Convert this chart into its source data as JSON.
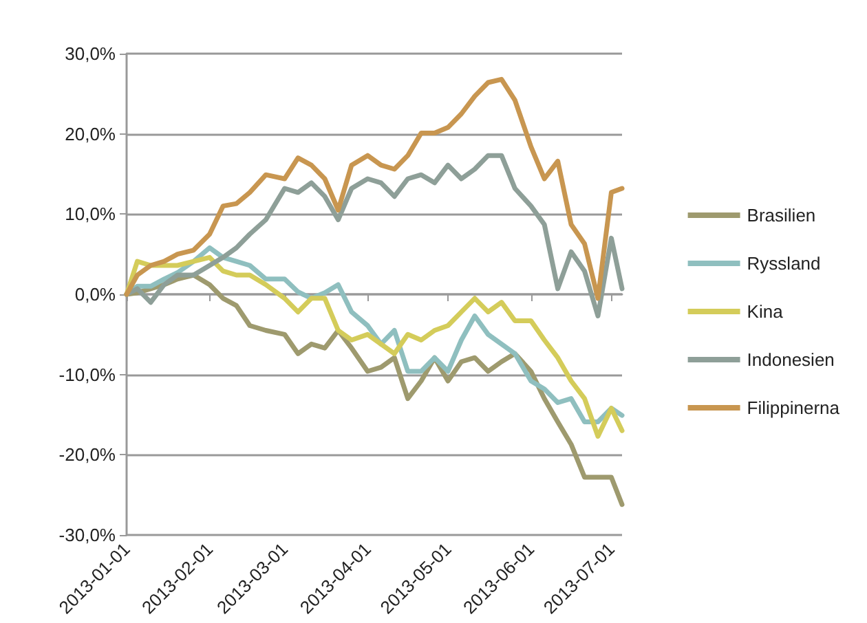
{
  "chart_data": {
    "type": "line",
    "x": [
      "2013-01-01",
      "2013-01-05",
      "2013-01-10",
      "2013-01-15",
      "2013-01-20",
      "2013-01-26",
      "2013-02-01",
      "2013-02-06",
      "2013-02-11",
      "2013-02-16",
      "2013-02-22",
      "2013-03-01",
      "2013-03-06",
      "2013-03-11",
      "2013-03-16",
      "2013-03-21",
      "2013-03-26",
      "2013-04-01",
      "2013-04-06",
      "2013-04-11",
      "2013-04-16",
      "2013-04-21",
      "2013-04-26",
      "2013-05-01",
      "2013-05-06",
      "2013-05-11",
      "2013-05-16",
      "2013-05-21",
      "2013-05-26",
      "2013-06-01",
      "2013-06-06",
      "2013-06-11",
      "2013-06-16",
      "2013-06-21",
      "2013-06-26",
      "2013-07-01",
      "2013-07-05"
    ],
    "series": [
      {
        "name": "Brasilien",
        "color": "#9e9a6e",
        "values": [
          0,
          0.2,
          0.7,
          1.2,
          1.9,
          2.4,
          1.2,
          -0.5,
          -1.4,
          -3.9,
          -4.5,
          -5.0,
          -7.4,
          -6.2,
          -6.7,
          -4.5,
          -6.7,
          -9.6,
          -9.1,
          -7.9,
          -13.0,
          -10.8,
          -7.9,
          -10.8,
          -8.4,
          -7.9,
          -9.6,
          -8.4,
          -7.4,
          -9.6,
          -13.0,
          -15.9,
          -18.7,
          -22.8,
          -22.8,
          -22.8,
          -26.2
        ]
      },
      {
        "name": "Ryssland",
        "color": "#8fbfbf",
        "values": [
          0,
          1.0,
          1.0,
          1.9,
          2.7,
          4.1,
          5.8,
          4.6,
          4.1,
          3.6,
          1.9,
          1.9,
          0.3,
          -0.5,
          0.2,
          1.2,
          -2.2,
          -3.9,
          -6.2,
          -4.5,
          -9.6,
          -9.6,
          -7.9,
          -9.6,
          -5.7,
          -2.7,
          -5.0,
          -6.2,
          -7.4,
          -10.8,
          -11.8,
          -13.5,
          -13.0,
          -15.9,
          -15.9,
          -14.2,
          -15.1
        ]
      },
      {
        "name": "Kina",
        "color": "#d4cc5a",
        "values": [
          0,
          4.1,
          3.6,
          3.6,
          3.6,
          4.1,
          4.6,
          2.9,
          2.4,
          2.4,
          1.2,
          -0.5,
          -2.2,
          -0.5,
          -0.5,
          -4.5,
          -5.7,
          -5.0,
          -6.2,
          -7.4,
          -5.0,
          -5.7,
          -4.5,
          -3.9,
          -2.2,
          -0.5,
          -2.2,
          -1.0,
          -3.3,
          -3.3,
          -5.7,
          -7.9,
          -10.8,
          -13.0,
          -17.7,
          -14.2,
          -17.0
        ]
      },
      {
        "name": "Indonesien",
        "color": "#8e9f98",
        "values": [
          0,
          0.7,
          -1.0,
          1.2,
          2.4,
          2.4,
          3.6,
          4.6,
          5.8,
          7.5,
          9.3,
          13.2,
          12.7,
          13.9,
          12.2,
          9.3,
          13.2,
          14.4,
          13.9,
          12.2,
          14.4,
          14.9,
          13.9,
          16.1,
          14.4,
          15.6,
          17.3,
          17.3,
          13.2,
          11.0,
          8.7,
          0.7,
          5.3,
          2.9,
          -2.7,
          7.0,
          0.7
        ]
      },
      {
        "name": "Filippinerna",
        "color": "#c89650",
        "values": [
          0,
          2.4,
          3.6,
          4.1,
          5.0,
          5.5,
          7.5,
          11.0,
          11.3,
          12.7,
          14.9,
          14.4,
          17.0,
          16.1,
          14.4,
          10.5,
          16.1,
          17.3,
          16.1,
          15.6,
          17.3,
          20.1,
          20.1,
          20.8,
          22.5,
          24.7,
          26.4,
          26.8,
          24.2,
          18.4,
          14.4,
          16.6,
          8.7,
          6.3,
          -0.5,
          12.7,
          13.2
        ]
      }
    ],
    "xlim": [
      "2013-01-01",
      "2013-07-05"
    ],
    "xticks": [
      "2013-01-01",
      "2013-02-01",
      "2013-03-01",
      "2013-04-01",
      "2013-05-01",
      "2013-06-01",
      "2013-07-01"
    ],
    "ylim": [
      -30,
      30
    ],
    "yticks": [
      {
        "value": -30,
        "label": "-30,0%"
      },
      {
        "value": -20,
        "label": "-20,0%"
      },
      {
        "value": -10,
        "label": "-10,0%"
      },
      {
        "value": 0,
        "label": "0,0%"
      },
      {
        "value": 10,
        "label": "10,0%"
      },
      {
        "value": 20,
        "label": "20,0%"
      },
      {
        "value": 30,
        "label": "30,0%"
      }
    ],
    "grid": "y",
    "legend": "right",
    "marker": "none",
    "line_style": "solid"
  }
}
